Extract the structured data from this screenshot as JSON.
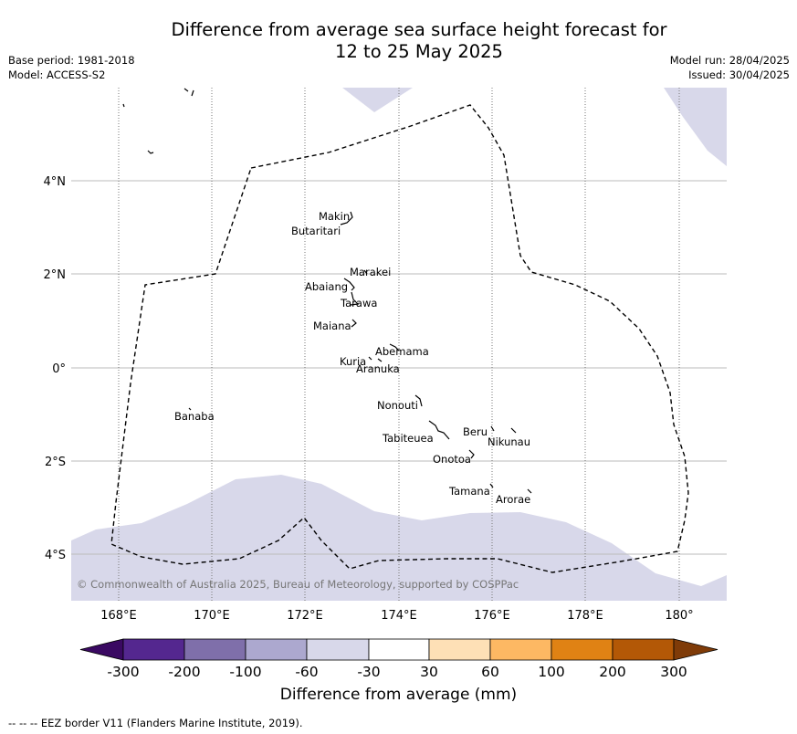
{
  "title_line1": "Difference from average sea surface height forecast for",
  "title_line2": "12 to 25 May 2025",
  "base_period": "Base period: 1981-2018",
  "model": "Model: ACCESS-S2",
  "model_run": "Model run: 28/04/2025",
  "issued": "Issued: 30/04/2025",
  "copyright": "© Commonwealth of Australia 2025, Bureau of Meteorology, supported by COSPPac",
  "footnote": "--  --  -- EEZ border V11 (Flanders Marine Institute, 2019).",
  "axes": {
    "lon_ticks": [
      "168°E",
      "170°E",
      "172°E",
      "174°E",
      "176°E",
      "178°E",
      "180°"
    ],
    "lat_ticks": [
      "4°N",
      "2°N",
      "0°",
      "2°S",
      "4°S"
    ]
  },
  "islands": {
    "makin": "Makin",
    "butaritari": "Butaritari",
    "marakei": "Marakei",
    "abaiang": "Abaiang",
    "tarawa": "Tarawa",
    "maiana": "Maiana",
    "abemama": "Abemama",
    "kuria": "Kuria",
    "aranuka": "Aranuka",
    "banaba": "Banaba",
    "nonouti": "Nonouti",
    "beru": "Beru",
    "nikunau": "Nikunau",
    "tabiteuea": "Tabiteuea",
    "onotoa": "Onotoa",
    "tamana": "Tamana",
    "arorae": "Arorae"
  },
  "colorbar": {
    "title": "Difference from average (mm)",
    "labels": [
      "-300",
      "-200",
      "-100",
      "-60",
      "-30",
      "30",
      "60",
      "100",
      "200",
      "300"
    ],
    "colors": {
      "under": "#3a0962",
      "c1": "#54278f",
      "c2": "#7f6faa",
      "c3": "#aca8cf",
      "c4": "#d8d8ea",
      "c5": "#ffffff",
      "c6": "#fee0b6",
      "c7": "#fdb863",
      "c8": "#e08214",
      "c9": "#b35806",
      "over": "#7f3b08"
    }
  },
  "shading_color": "#d8d8ea"
}
